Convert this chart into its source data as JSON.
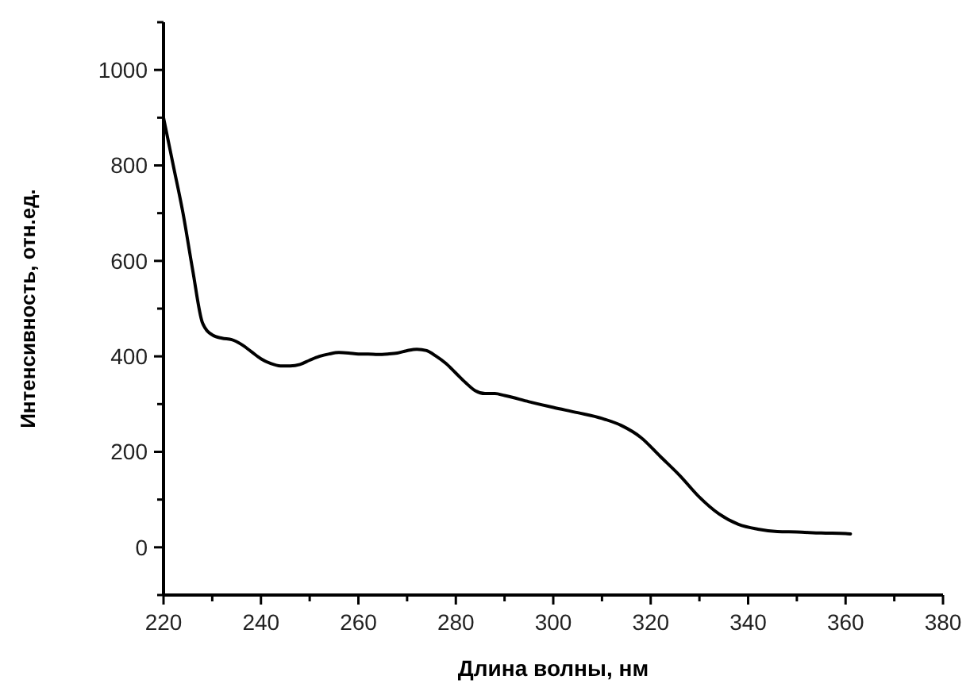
{
  "chart_data": {
    "type": "line",
    "xlabel": "Длина волны, нм",
    "ylabel": "Интенсивность, отн.ед.",
    "xlim": [
      220,
      380
    ],
    "ylim": [
      -100,
      1100
    ],
    "xticks": [
      220,
      {
        "value": 230,
        "label": null
      },
      240,
      {
        "value": 250,
        "label": null
      },
      260,
      {
        "value": 270,
        "label": null
      },
      280,
      {
        "value": 290,
        "label": null
      },
      300,
      {
        "value": 310,
        "label": null
      },
      320,
      {
        "value": 330,
        "label": null
      },
      340,
      {
        "value": 350,
        "label": null
      },
      360,
      {
        "value": 370,
        "label": null
      },
      380
    ],
    "yticks": [
      {
        "value": -100,
        "label": null
      },
      0,
      {
        "value": 100,
        "label": null
      },
      200,
      {
        "value": 300,
        "label": null
      },
      400,
      {
        "value": 500,
        "label": null
      },
      600,
      {
        "value": 700,
        "label": null
      },
      800,
      {
        "value": 900,
        "label": null
      },
      1000,
      {
        "value": 1100,
        "label": null
      }
    ],
    "grid": false,
    "marker": "none",
    "line_style": "solid",
    "series": [
      {
        "color": "#000000",
        "x": [
          220,
          222,
          224,
          226,
          228,
          230,
          232,
          234,
          236,
          238,
          240,
          242,
          244,
          246,
          248,
          250,
          252,
          254,
          256,
          258,
          260,
          262,
          264,
          266,
          268,
          270,
          272,
          274,
          276,
          278,
          280,
          282,
          284,
          286,
          288,
          290,
          295,
          300,
          305,
          310,
          314,
          318,
          322,
          326,
          330,
          334,
          338,
          342,
          346,
          350,
          355,
          360,
          361
        ],
        "values": [
          900,
          800,
          700,
          580,
          470,
          445,
          438,
          435,
          425,
          410,
          395,
          385,
          380,
          380,
          383,
          392,
          400,
          405,
          408,
          407,
          405,
          405,
          404,
          405,
          407,
          412,
          415,
          412,
          400,
          385,
          365,
          345,
          328,
          322,
          322,
          318,
          305,
          293,
          282,
          270,
          255,
          230,
          190,
          150,
          105,
          70,
          48,
          38,
          33,
          32,
          30,
          29,
          28
        ]
      }
    ]
  }
}
